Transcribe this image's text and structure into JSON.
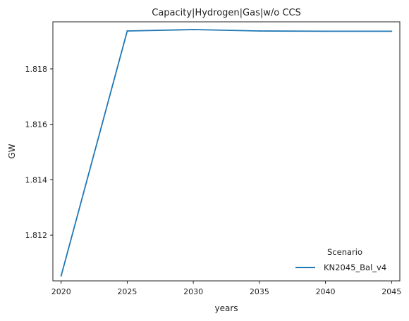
{
  "chart_data": {
    "type": "line",
    "title": "Capacity|Hydrogen|Gas|w/o CCS",
    "xlabel": "years",
    "ylabel": "GW",
    "x": [
      2020,
      2025,
      2030,
      2035,
      2040,
      2045
    ],
    "x_ticks": [
      "2020",
      "2025",
      "2030",
      "2035",
      "2040",
      "2045"
    ],
    "y_ticks": [
      "1.812",
      "1.814",
      "1.816",
      "1.818"
    ],
    "y_tick_values": [
      1.812,
      1.814,
      1.816,
      1.818
    ],
    "xlim": [
      2019.375,
      2045.625
    ],
    "ylim": [
      1.81035,
      1.8197
    ],
    "grid": false,
    "legend": {
      "title": "Scenario",
      "placement": "lower-right"
    },
    "series": [
      {
        "name": "KN2045_Bal_v4",
        "color": "#1f77b4",
        "values": [
          1.81053,
          1.81937,
          1.81942,
          1.81937,
          1.81936,
          1.81936
        ]
      }
    ]
  }
}
